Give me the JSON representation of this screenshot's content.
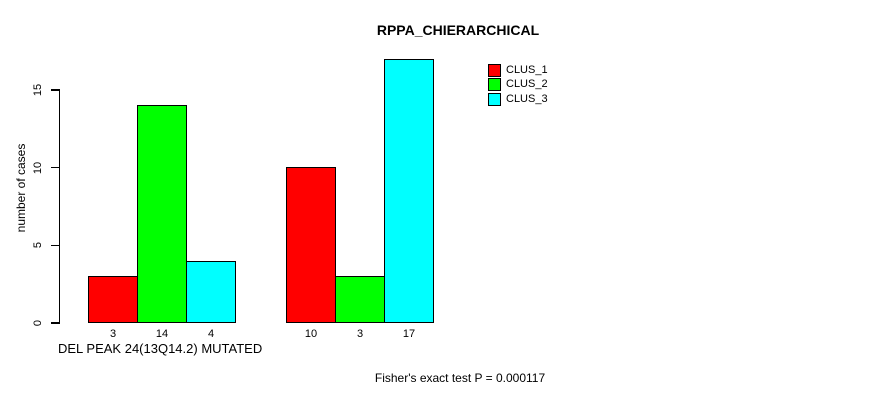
{
  "chart_data": {
    "type": "bar",
    "title": "RPPA_CHIERARCHICAL",
    "ylabel": "number of cases",
    "xlabel": "DEL PEAK 24(13Q14.2) MUTATED",
    "footnote": "Fisher's exact test P = 0.000117",
    "yticks": [
      0,
      5,
      10,
      15
    ],
    "ylim": [
      0,
      17
    ],
    "grid": false,
    "legend_position": "top-right",
    "groups": 2,
    "series": [
      {
        "name": "CLUS_1",
        "color": "#ff0000",
        "values": [
          3,
          10
        ]
      },
      {
        "name": "CLUS_2",
        "color": "#00ff00",
        "values": [
          14,
          3
        ]
      },
      {
        "name": "CLUS_3",
        "color": "#00ffff",
        "values": [
          4,
          17
        ]
      }
    ]
  }
}
